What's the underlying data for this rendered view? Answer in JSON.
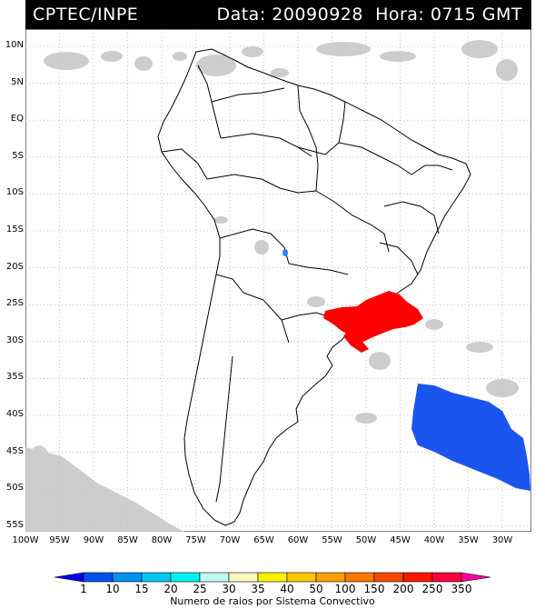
{
  "header": {
    "source": "CPTEC/INPE",
    "date_text": "Data: 20090928",
    "time_text": "Hora: 0715 GMT"
  },
  "map": {
    "lat_labels": [
      "10N",
      "5N",
      "EQ",
      "5S",
      "10S",
      "15S",
      "20S",
      "25S",
      "30S",
      "35S",
      "40S",
      "45S",
      "50S",
      "55S"
    ],
    "lon_labels": [
      "100W",
      "95W",
      "90W",
      "85W",
      "80W",
      "75W",
      "70W",
      "65W",
      "60W",
      "55W",
      "50W",
      "45W",
      "40W",
      "35W",
      "30W"
    ]
  },
  "colorbar": {
    "labels": [
      "1",
      "10",
      "15",
      "20",
      "25",
      "30",
      "35",
      "40",
      "50",
      "100",
      "150",
      "200",
      "250",
      "350"
    ],
    "title": "Numero de raios por Sistema Convectivo",
    "colors": [
      "#0000ee",
      "#0050f0",
      "#0090f0",
      "#00c8f0",
      "#00f0f0",
      "#c0f8f0",
      "#f8f8c0",
      "#f8f000",
      "#f8c800",
      "#f8a000",
      "#f87800",
      "#f84800",
      "#f81800",
      "#f80040",
      "#f800a0"
    ]
  },
  "overlay_colors": {
    "cloud_gray": "#c8c8c8",
    "storm_red": "#ff0000",
    "storm_blue": "#1a55f0",
    "small_blue": "#2a80ff"
  }
}
